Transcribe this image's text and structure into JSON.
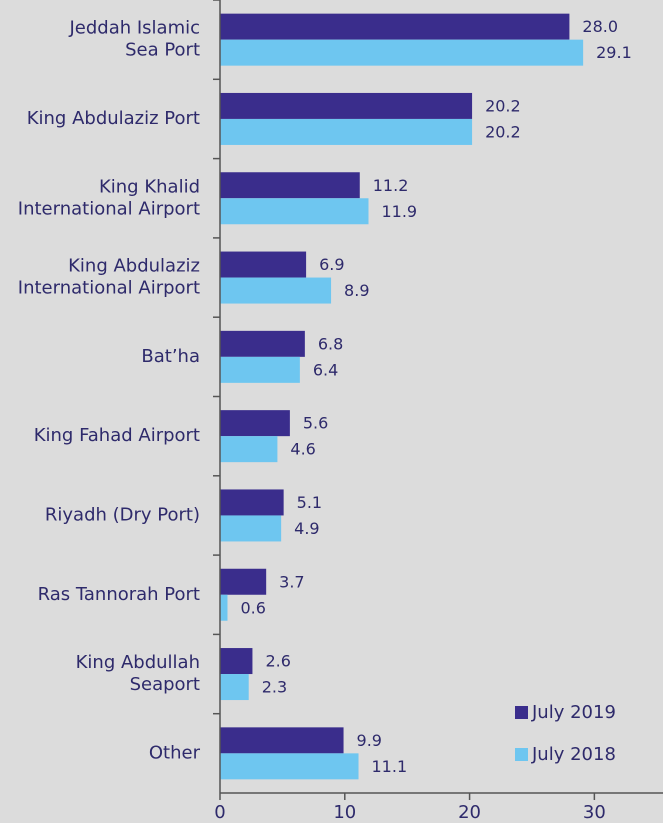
{
  "chart_data": {
    "type": "bar",
    "orientation": "horizontal",
    "categories": [
      "Jeddah Islamic\nSea Port",
      "King Abdulaziz Port",
      "King Khalid\nInternational Airport",
      "King Abdulaziz\nInternational Airport",
      "Bat’ha",
      "King Fahad Airport",
      "Riyadh (Dry Port)",
      "Ras Tannorah Port",
      "King Abdullah\nSeaport",
      "Other"
    ],
    "series": [
      {
        "name": "July 2019",
        "color": "#3a2d8c",
        "values": [
          28.0,
          20.2,
          11.2,
          6.9,
          6.8,
          5.6,
          5.1,
          3.7,
          2.6,
          9.9
        ],
        "value_labels": [
          "28.0",
          "20.2",
          "11.2",
          "6.9",
          "6.8",
          "5.6",
          "5.1",
          "3.7",
          "2.6",
          "9.9"
        ]
      },
      {
        "name": "July 2018",
        "color": "#6ec6f0",
        "values": [
          29.1,
          20.2,
          11.9,
          8.9,
          6.4,
          4.6,
          4.9,
          0.6,
          2.3,
          11.1
        ],
        "value_labels": [
          "29.1",
          "20.2",
          "11.9",
          "8.9",
          "6.4",
          "4.6",
          "4.9",
          "0.6",
          "2.3",
          "11.1"
        ]
      }
    ],
    "xlim": [
      0,
      35.5
    ],
    "xticks": [
      0,
      10,
      20,
      30
    ],
    "legend": "bottom-right"
  }
}
